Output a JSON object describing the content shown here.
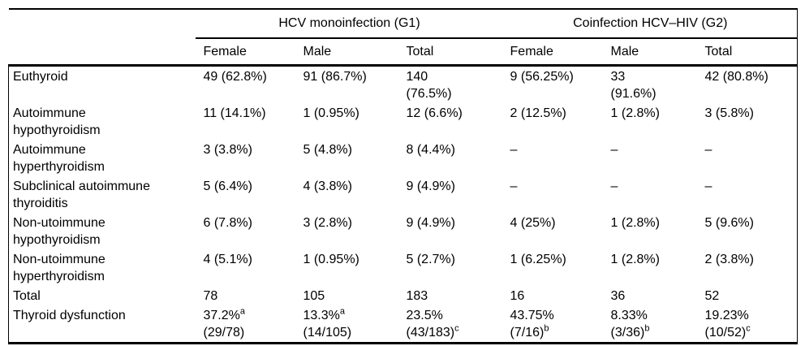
{
  "colors": {
    "background": "#ffffff",
    "text": "#000000",
    "border": "#000000"
  },
  "table": {
    "corner_label": "",
    "group_headers": [
      "HCV monoinfection (G1)",
      "Coinfection HCV–HIV (G2)"
    ],
    "sub_headers": [
      "Female",
      "Male",
      "Total",
      "Female",
      "Male",
      "Total"
    ],
    "rows": [
      {
        "label": [
          "Euthyroid"
        ],
        "cells": [
          [
            {
              "t": "49 (62.8%)"
            }
          ],
          [
            {
              "t": "91 (86.7%)"
            }
          ],
          [
            {
              "t": "140"
            },
            {
              "t": "(76.5%)"
            }
          ],
          [
            {
              "t": "9 (56.25%)"
            }
          ],
          [
            {
              "t": "33"
            },
            {
              "t": "(91.6%)"
            }
          ],
          [
            {
              "t": "42 (80.8%)"
            }
          ]
        ]
      },
      {
        "label": [
          "Autoimmune",
          "hypothyroidism"
        ],
        "cells": [
          [
            {
              "t": "11 (14.1%)"
            }
          ],
          [
            {
              "t": "1 (0.95%)"
            }
          ],
          [
            {
              "t": "12 (6.6%)"
            }
          ],
          [
            {
              "t": "2 (12.5%)"
            }
          ],
          [
            {
              "t": "1 (2.8%)"
            }
          ],
          [
            {
              "t": "3 (5.8%)"
            }
          ]
        ]
      },
      {
        "label": [
          "Autoimmune",
          "hyperthyroidism"
        ],
        "cells": [
          [
            {
              "t": "3 (3.8%)"
            }
          ],
          [
            {
              "t": "5 (4.8%)"
            }
          ],
          [
            {
              "t": "8 (4.4%)"
            }
          ],
          [
            {
              "t": "–"
            }
          ],
          [
            {
              "t": "–"
            }
          ],
          [
            {
              "t": "–"
            }
          ]
        ]
      },
      {
        "label": [
          "Subclinical autoimmune",
          "thyroiditis"
        ],
        "cells": [
          [
            {
              "t": "5 (6.4%)"
            }
          ],
          [
            {
              "t": "4 (3.8%)"
            }
          ],
          [
            {
              "t": "9 (4.9%)"
            }
          ],
          [
            {
              "t": "–"
            }
          ],
          [
            {
              "t": "–"
            }
          ],
          [
            {
              "t": "–"
            }
          ]
        ]
      },
      {
        "label": [
          "Non-utoimmune",
          "hypothyroidism"
        ],
        "cells": [
          [
            {
              "t": "6 (7.8%)"
            }
          ],
          [
            {
              "t": "3 (2.8%)"
            }
          ],
          [
            {
              "t": "9 (4.9%)"
            }
          ],
          [
            {
              "t": "4 (25%)"
            }
          ],
          [
            {
              "t": "1 (2.8%)"
            }
          ],
          [
            {
              "t": "5 (9.6%)"
            }
          ]
        ]
      },
      {
        "label": [
          "Non-utoimmune",
          "hyperthyroidism"
        ],
        "cells": [
          [
            {
              "t": "4 (5.1%)"
            }
          ],
          [
            {
              "t": "1 (0.95%)"
            }
          ],
          [
            {
              "t": "5 (2.7%)"
            }
          ],
          [
            {
              "t": "1 (6.25%)"
            }
          ],
          [
            {
              "t": "1 (2.8%)"
            }
          ],
          [
            {
              "t": "2 (3.8%)"
            }
          ]
        ]
      },
      {
        "label": [
          "Total"
        ],
        "cells": [
          [
            {
              "t": "78"
            }
          ],
          [
            {
              "t": "105"
            }
          ],
          [
            {
              "t": "183"
            }
          ],
          [
            {
              "t": "16"
            }
          ],
          [
            {
              "t": "36"
            }
          ],
          [
            {
              "t": "52"
            }
          ]
        ]
      },
      {
        "label": [
          "Thyroid dysfunction"
        ],
        "cells": [
          [
            {
              "t": "37.2%",
              "sup": "a"
            },
            {
              "t": "(29/78)"
            }
          ],
          [
            {
              "t": "13.3%",
              "sup": "a"
            },
            {
              "t": "(14/105)"
            }
          ],
          [
            {
              "t": "23.5%"
            },
            {
              "t": "(43/183)",
              "sup": "c"
            }
          ],
          [
            {
              "t": "43.75%"
            },
            {
              "t": "(7/16)",
              "sup": "b"
            }
          ],
          [
            {
              "t": "8.33%"
            },
            {
              "t": "(3/36)",
              "sup": "b"
            }
          ],
          [
            {
              "t": "19.23%"
            },
            {
              "t": "(10/52)",
              "sup": "c"
            }
          ]
        ]
      }
    ]
  }
}
